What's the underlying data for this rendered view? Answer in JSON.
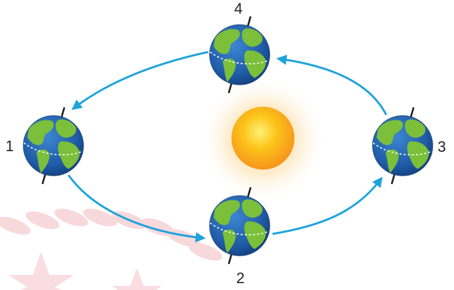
{
  "colors": {
    "arrow": "#1ea3dc",
    "ocean": "#1f5aa6",
    "land": "#7bbf3a",
    "sun_core": "#f9a51c",
    "sun_glow": "#fde6b8",
    "axis": "#231f20",
    "equator": "#ffffff",
    "watermark": "#f7d9dc"
  },
  "earth": {
    "icon": "earth-globe-icon",
    "positions": [
      {
        "label": "1"
      },
      {
        "label": "2"
      },
      {
        "label": "3"
      },
      {
        "label": "4"
      }
    ]
  },
  "sun": {
    "icon": "sun-icon"
  },
  "orbit": {
    "arrow_count": 4,
    "direction": "counter-clockwise"
  }
}
